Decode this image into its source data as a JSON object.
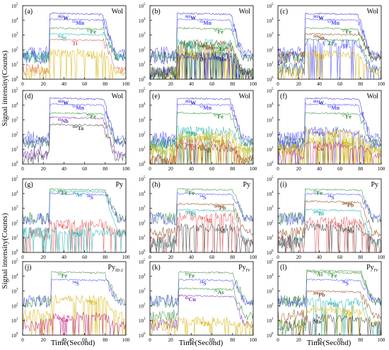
{
  "figure": {
    "ylabel": "Signal intensity(Counts)",
    "xlabel": "Time(Second)",
    "x_ticks": [
      "0",
      "20",
      "40",
      "60",
      "80",
      "100"
    ],
    "y_ticks": [
      "10",
      "10",
      "10",
      "10",
      "10",
      "10"
    ],
    "y_tick_exponents": [
      "0",
      "1",
      "2",
      "3",
      "4",
      "5"
    ]
  },
  "chart_data": [
    {
      "id": "a",
      "label": "(a)",
      "mineral": "Wol",
      "type": "line",
      "xlim": [
        0,
        100
      ],
      "ylim": [
        1,
        100000
      ],
      "yscale": "log",
      "ablation_window": [
        26,
        78
      ],
      "series": [
        {
          "name": "182W",
          "mass": "182",
          "el": "W",
          "color": "#2a2ac8",
          "level": 30000,
          "bg": 30
        },
        {
          "name": "55Mn",
          "mass": "55",
          "el": "Mn",
          "color": "#4a4aff",
          "level": 12000,
          "bg": 60
        },
        {
          "name": "57Fe",
          "mass": "57",
          "el": "Fe",
          "color": "#2e8b2e",
          "level": 3000,
          "bg": 30
        },
        {
          "name": "45Sc",
          "mass": "45",
          "el": "Sc",
          "color": "#20b0b0",
          "level": 1200,
          "bg": 30
        },
        {
          "name": "Ti",
          "mass": "",
          "el": "Ti",
          "color": "#e05050",
          "level": 500,
          "bg": 5
        },
        {
          "name": "51V",
          "mass": "51",
          "el": "V",
          "color": "#d4b000",
          "level": 60,
          "bg": 3
        }
      ]
    },
    {
      "id": "b",
      "label": "(b)",
      "mineral": "Wol",
      "type": "line",
      "xlim": [
        0,
        100
      ],
      "ylim": [
        1,
        100000
      ],
      "yscale": "log",
      "ablation_window": [
        26,
        78
      ],
      "series": [
        {
          "name": "182W",
          "mass": "182",
          "el": "W",
          "color": "#2a2ac8",
          "level": 30000,
          "bg": 30
        },
        {
          "name": "55Mn",
          "mass": "55",
          "el": "Mn",
          "color": "#4a4aff",
          "level": 12000,
          "bg": 60
        },
        {
          "name": "57Fe",
          "mass": "57",
          "el": "Fe",
          "color": "#2e8b2e",
          "level": 3000,
          "bg": 30
        },
        {
          "name": "89Y",
          "mass": "89",
          "el": "Y",
          "color": "#20b0b0",
          "level": 300,
          "bg": 3
        },
        {
          "name": "169Tm",
          "mass": "169",
          "el": "Tm",
          "color": "#8b4513",
          "level": 250,
          "bg": 3
        },
        {
          "name": "167Er",
          "mass": "167",
          "el": "Er",
          "color": "#2e8b2e",
          "level": 200,
          "bg": 3
        },
        {
          "name": "159Tb",
          "mass": "159",
          "el": "Tb",
          "color": "#d4b000",
          "level": 60,
          "bg": 3
        },
        {
          "name": "Dy",
          "mass": "",
          "el": "Dy",
          "color": "#404040",
          "level": 40,
          "bg": 3
        },
        {
          "name": "165Ho",
          "mass": "165",
          "el": "Ho",
          "color": "#2a2ac8",
          "level": 40,
          "bg": 3
        }
      ]
    },
    {
      "id": "c",
      "label": "(c)",
      "mineral": "Wol",
      "type": "line",
      "xlim": [
        0,
        100
      ],
      "ylim": [
        1,
        100000
      ],
      "yscale": "log",
      "ablation_window": [
        26,
        78
      ],
      "series": [
        {
          "name": "182W",
          "mass": "182",
          "el": "W",
          "color": "#2a2ac8",
          "level": 30000,
          "bg": 30
        },
        {
          "name": "55Mn",
          "mass": "55",
          "el": "Mn",
          "color": "#4a4aff",
          "level": 12000,
          "bg": 60
        },
        {
          "name": "57Fe",
          "mass": "57",
          "el": "Fe",
          "color": "#2e8b2e",
          "level": 3000,
          "bg": 30
        },
        {
          "name": "118Sn",
          "mass": "118",
          "el": "Sn",
          "color": "#8b4513",
          "level": 1200,
          "bg": 30
        },
        {
          "name": "Zr",
          "mass": "",
          "el": "Zr",
          "color": "#2e8b2e",
          "level": 500,
          "bg": 5
        },
        {
          "name": "Ti",
          "mass": "",
          "el": "Ti",
          "color": "#4a4aff",
          "level": 300,
          "bg": 5
        },
        {
          "name": "178Hf",
          "mass": "178",
          "el": "Hf",
          "color": "#d4b000",
          "level": 60,
          "bg": 3
        }
      ]
    },
    {
      "id": "d",
      "label": "(d)",
      "mineral": "Wol",
      "type": "line",
      "xlim": [
        0,
        100
      ],
      "ylim": [
        1,
        100000
      ],
      "yscale": "log",
      "ablation_window": [
        26,
        78
      ],
      "series": [
        {
          "name": "182W",
          "mass": "182",
          "el": "W",
          "color": "#2a2ac8",
          "level": 30000,
          "bg": 30
        },
        {
          "name": "55Mn",
          "mass": "55",
          "el": "Mn",
          "color": "#4a4aff",
          "level": 12000,
          "bg": 60
        },
        {
          "name": "57Fe",
          "mass": "57",
          "el": "Fe",
          "color": "#2e8b2e",
          "level": 3000,
          "bg": 30
        },
        {
          "name": "93Nb",
          "mass": "93",
          "el": "Nb",
          "color": "#7b2fbf",
          "level": 1500,
          "bg": 5
        },
        {
          "name": "181Ta",
          "mass": "181",
          "el": "Ta",
          "color": "#404040",
          "level": 500,
          "bg": 3
        }
      ]
    },
    {
      "id": "e",
      "label": "(e)",
      "mineral": "Wol",
      "type": "line",
      "xlim": [
        0,
        100
      ],
      "ylim": [
        1,
        100000
      ],
      "yscale": "log",
      "ablation_window": [
        26,
        78
      ],
      "series": [
        {
          "name": "182W",
          "mass": "182",
          "el": "W",
          "color": "#2a2ac8",
          "level": 30000,
          "bg": 30
        },
        {
          "name": "55Mn",
          "mass": "55",
          "el": "Mn",
          "color": "#4a4aff",
          "level": 12000,
          "bg": 60
        },
        {
          "name": "57Fe",
          "mass": "57",
          "el": "Fe",
          "color": "#2e8b2e",
          "level": 3000,
          "bg": 30
        },
        {
          "name": "208Pb",
          "mass": "208",
          "el": "Pb",
          "color": "#20b0b0",
          "level": 200,
          "bg": 20
        },
        {
          "name": "95Mo",
          "mass": "95",
          "el": "Mo",
          "color": "#d4b000",
          "level": 100,
          "bg": 10
        },
        {
          "name": "66Zn",
          "mass": "66",
          "el": "Zn",
          "color": "#b8b800",
          "level": 50,
          "bg": 10
        },
        {
          "name": "209Bi",
          "mass": "209",
          "el": "Bi",
          "color": "#e05050",
          "level": 30,
          "bg": 2
        },
        {
          "name": "121Sb",
          "mass": "121",
          "el": "Sb",
          "color": "#8b4513",
          "level": 15,
          "bg": 2
        }
      ]
    },
    {
      "id": "f",
      "label": "(f)",
      "mineral": "Wol",
      "type": "line",
      "xlim": [
        0,
        100
      ],
      "ylim": [
        1,
        100000
      ],
      "yscale": "log",
      "ablation_window": [
        26,
        78
      ],
      "series": [
        {
          "name": "182W",
          "mass": "182",
          "el": "W",
          "color": "#2a2ac8",
          "level": 30000,
          "bg": 30
        },
        {
          "name": "55Mn",
          "mass": "55",
          "el": "Mn",
          "color": "#4a4aff",
          "level": 12000,
          "bg": 60
        },
        {
          "name": "57Fe",
          "mass": "57",
          "el": "Fe",
          "color": "#2e8b2e",
          "level": 3000,
          "bg": 30
        },
        {
          "name": "208Pb",
          "mass": "208",
          "el": "Pb",
          "color": "#4a4aff",
          "level": 200,
          "bg": 20
        },
        {
          "name": "95Mo",
          "mass": "95",
          "el": "Mo",
          "color": "#d4b000",
          "level": 150,
          "bg": 10
        },
        {
          "name": "66Zn",
          "mass": "66",
          "el": "Zn",
          "color": "#b8b800",
          "level": 40,
          "bg": 10
        },
        {
          "name": "63Cu",
          "mass": "63",
          "el": "Cu",
          "color": "#c02080",
          "level": 20,
          "bg": 5
        }
      ]
    },
    {
      "id": "g",
      "label": "(g)",
      "mineral": "Py",
      "type": "line",
      "xlim": [
        0,
        100
      ],
      "ylim": [
        1,
        100000
      ],
      "yscale": "log",
      "ablation_window": [
        26,
        80
      ],
      "series": [
        {
          "name": "57Fe",
          "mass": "57",
          "el": "Fe",
          "color": "#2e8b2e",
          "level": 20000,
          "bg": 200
        },
        {
          "name": "75As",
          "mass": "75",
          "el": "As",
          "color": "#20b0b0",
          "level": 15000,
          "bg": 20
        },
        {
          "name": "34S",
          "mass": "34",
          "el": "S",
          "color": "#4a4aff",
          "level": 10000,
          "bg": 200
        },
        {
          "name": "59Co",
          "mass": "59",
          "el": "Co",
          "color": "#e05050",
          "level": 100,
          "bg": 20
        },
        {
          "name": "60Ni",
          "mass": "60",
          "el": "Ni",
          "color": "#20b0b0",
          "level": 30,
          "bg": 20
        }
      ]
    },
    {
      "id": "h",
      "label": "(h)",
      "mineral": "Py",
      "type": "line",
      "xlim": [
        0,
        100
      ],
      "ylim": [
        1,
        100000
      ],
      "yscale": "log",
      "ablation_window": [
        26,
        80
      ],
      "series": [
        {
          "name": "57Fe",
          "mass": "57",
          "el": "Fe",
          "color": "#2e8b2e",
          "level": 20000,
          "bg": 200
        },
        {
          "name": "34S",
          "mass": "34",
          "el": "S",
          "color": "#4a4aff",
          "level": 10000,
          "bg": 200
        },
        {
          "name": "208Pb",
          "mass": "208",
          "el": "Pb",
          "color": "#8b4513",
          "level": 2000,
          "bg": 20
        },
        {
          "name": "209Bi",
          "mass": "209",
          "el": "Bi",
          "color": "#20b0b0",
          "level": 800,
          "bg": 5
        },
        {
          "name": "107Ag",
          "mass": "107",
          "el": "Ag",
          "color": "#e05050",
          "level": 300,
          "bg": 5
        },
        {
          "name": "121Sb",
          "mass": "121",
          "el": "Sb",
          "color": "#404040",
          "level": 50,
          "bg": 5
        }
      ]
    },
    {
      "id": "i",
      "label": "(i)",
      "mineral": "Py",
      "type": "line",
      "xlim": [
        0,
        100
      ],
      "ylim": [
        1,
        100000
      ],
      "yscale": "log",
      "ablation_window": [
        26,
        80
      ],
      "series": [
        {
          "name": "57Fe",
          "mass": "57",
          "el": "Fe",
          "color": "#2e8b2e",
          "level": 20000,
          "bg": 200
        },
        {
          "name": "34S",
          "mass": "34",
          "el": "S",
          "color": "#4a4aff",
          "level": 10000,
          "bg": 200
        },
        {
          "name": "208Pb",
          "mass": "208",
          "el": "Pb",
          "color": "#8b4513",
          "level": 3000,
          "bg": 20
        },
        {
          "name": "209Bi",
          "mass": "209",
          "el": "Bi",
          "color": "#20b0b0",
          "level": 800,
          "bg": 5
        },
        {
          "name": "107Ag",
          "mass": "107",
          "el": "Ag",
          "color": "#e05050",
          "level": 150,
          "bg": 5
        },
        {
          "name": "121Sb",
          "mass": "121",
          "el": "Sb",
          "color": "#404040",
          "level": 50,
          "bg": 5
        }
      ]
    },
    {
      "id": "j",
      "label": "(j)",
      "mineral": "Py",
      "mineral_sub": "III-2",
      "type": "line",
      "xlim": [
        0,
        100
      ],
      "ylim": [
        1,
        100000
      ],
      "yscale": "log",
      "ablation_window": [
        28,
        80
      ],
      "series": [
        {
          "name": "57Fe",
          "mass": "57",
          "el": "Fe",
          "color": "#2e8b2e",
          "level": 20000,
          "bg": 200
        },
        {
          "name": "34S",
          "mass": "34",
          "el": "S",
          "color": "#4a4aff",
          "level": 6000,
          "bg": 200
        },
        {
          "name": "66Zn",
          "mass": "66",
          "el": "Zn",
          "color": "#d4b000",
          "level": 300,
          "bg": 20
        },
        {
          "name": "63Cu",
          "mass": "63",
          "el": "Cu",
          "color": "#c02080",
          "level": 20,
          "bg": 5
        }
      ]
    },
    {
      "id": "k",
      "label": "(k)",
      "mineral": "Py",
      "mineral_sub": "IV",
      "type": "line",
      "xlim": [
        0,
        100
      ],
      "ylim": [
        1,
        100000
      ],
      "yscale": "log",
      "ablation_window": [
        28,
        80
      ],
      "series": [
        {
          "name": "57Fe",
          "mass": "57",
          "el": "Fe",
          "color": "#2e8b2e",
          "level": 20000,
          "bg": 200
        },
        {
          "name": "34S",
          "mass": "34",
          "el": "S",
          "color": "#4a4aff",
          "level": 6000,
          "bg": 200
        },
        {
          "name": "75As",
          "mass": "75",
          "el": "As",
          "color": "#2e8b2e",
          "level": 1500,
          "bg": 20
        },
        {
          "name": "63Cu",
          "mass": "63",
          "el": "Cu",
          "color": "#7b2fbf",
          "level": 500,
          "bg": 5
        },
        {
          "name": "66Zn",
          "mass": "66",
          "el": "Zn",
          "color": "#d4b000",
          "level": 10,
          "bg": 5
        }
      ]
    },
    {
      "id": "l",
      "label": "(l)",
      "mineral": "Py",
      "mineral_sub": "IV",
      "type": "line",
      "xlim": [
        0,
        100
      ],
      "ylim": [
        1,
        100000
      ],
      "yscale": "log",
      "ablation_window": [
        28,
        80
      ],
      "series": [
        {
          "name": "75As",
          "mass": "75",
          "el": "As",
          "color": "#2e8b2e",
          "level": 25000,
          "bg": 200
        },
        {
          "name": "57Fe",
          "mass": "57",
          "el": "Fe",
          "color": "#2e8b2e",
          "level": 20000,
          "bg": 200
        },
        {
          "name": "34S",
          "mass": "34",
          "el": "S",
          "color": "#4a4aff",
          "level": 6000,
          "bg": 200
        },
        {
          "name": "208Pb",
          "mass": "208",
          "el": "Pb",
          "color": "#8b4513",
          "level": 1000,
          "bg": 20
        },
        {
          "name": "209Bi",
          "mass": "209",
          "el": "Bi",
          "color": "#20b0b0",
          "level": 200,
          "bg": 5
        },
        {
          "name": "66Zn",
          "mass": "66",
          "el": "Zn",
          "color": "#d4b000",
          "level": 60,
          "bg": 5
        },
        {
          "name": "Mo",
          "mass": "",
          "el": "Mo",
          "color": "#404040",
          "level": 15,
          "bg": 5
        }
      ]
    }
  ]
}
